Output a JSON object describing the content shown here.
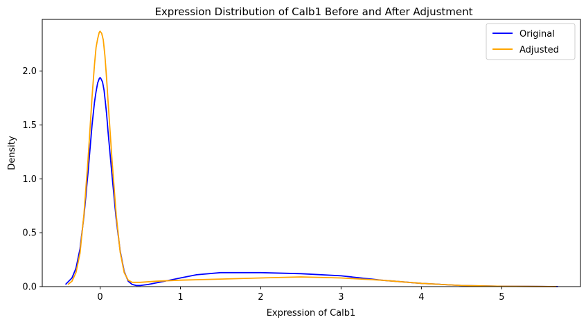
{
  "chart_data": {
    "type": "line",
    "title": "Expression Distribution of Calb1 Before and After Adjustment",
    "xlabel": "Expression of Calb1",
    "ylabel": "Density",
    "xlim": [
      -0.72,
      5.98
    ],
    "ylim": [
      0,
      2.48
    ],
    "xticks": [
      0,
      1,
      2,
      3,
      4,
      5
    ],
    "yticks": [
      0.0,
      0.5,
      1.0,
      1.5,
      2.0
    ],
    "grid": false,
    "legend_position": "top-right",
    "series": [
      {
        "name": "Original",
        "color": "#0000ff",
        "x": [
          -0.43,
          -0.35,
          -0.3,
          -0.25,
          -0.2,
          -0.15,
          -0.1,
          -0.07,
          -0.05,
          -0.03,
          -0.01,
          0.0,
          0.01,
          0.03,
          0.05,
          0.08,
          0.1,
          0.15,
          0.2,
          0.25,
          0.3,
          0.35,
          0.4,
          0.45,
          0.5,
          0.6,
          0.8,
          1.0,
          1.2,
          1.5,
          2.0,
          2.5,
          3.0,
          3.5,
          4.0,
          4.5,
          5.0,
          5.5,
          5.7
        ],
        "y": [
          0.02,
          0.08,
          0.17,
          0.35,
          0.66,
          1.06,
          1.5,
          1.71,
          1.81,
          1.89,
          1.93,
          1.94,
          1.93,
          1.9,
          1.82,
          1.61,
          1.43,
          1.02,
          0.63,
          0.33,
          0.14,
          0.05,
          0.02,
          0.01,
          0.01,
          0.02,
          0.05,
          0.08,
          0.11,
          0.13,
          0.13,
          0.12,
          0.1,
          0.06,
          0.03,
          0.01,
          0.003,
          0.001,
          0.0
        ]
      },
      {
        "name": "Adjusted",
        "color": "#ffa500",
        "x": [
          -0.4,
          -0.35,
          -0.3,
          -0.25,
          -0.2,
          -0.15,
          -0.1,
          -0.07,
          -0.05,
          -0.03,
          -0.01,
          0.0,
          0.02,
          0.04,
          0.06,
          0.08,
          0.1,
          0.15,
          0.2,
          0.25,
          0.3,
          0.35,
          0.4,
          0.5,
          0.7,
          1.0,
          1.5,
          2.0,
          2.5,
          3.0,
          3.5,
          4.0,
          4.5,
          5.0,
          5.5,
          5.68
        ],
        "y": [
          0.02,
          0.05,
          0.13,
          0.31,
          0.68,
          1.18,
          1.76,
          2.06,
          2.22,
          2.3,
          2.36,
          2.37,
          2.35,
          2.29,
          2.14,
          1.94,
          1.71,
          1.16,
          0.67,
          0.32,
          0.13,
          0.06,
          0.04,
          0.04,
          0.05,
          0.06,
          0.07,
          0.08,
          0.09,
          0.08,
          0.06,
          0.03,
          0.01,
          0.003,
          0.001,
          0.0
        ]
      }
    ]
  }
}
